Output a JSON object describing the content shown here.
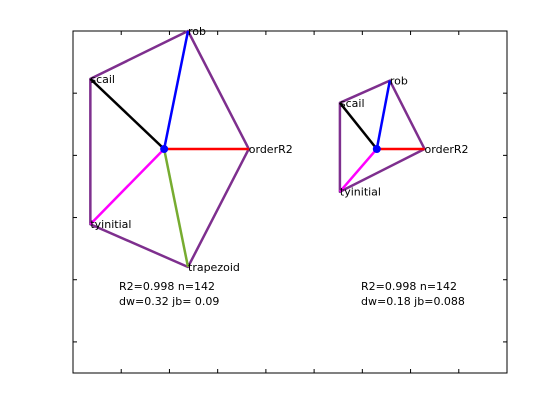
{
  "chart_data": {
    "type": "radar-diagram",
    "grid": false,
    "axes_box": true,
    "axis_ranges": {
      "x": [
        0,
        1
      ],
      "y": [
        0,
        1
      ]
    },
    "diagrams": [
      {
        "hub": {
          "x": 0.21,
          "y": 0.655,
          "color": "#0000ff"
        },
        "spokes": [
          {
            "label": "orderR2",
            "x": 0.405,
            "y": 0.655,
            "color": "#ff0000"
          },
          {
            "label": "rob",
            "x": 0.265,
            "y": 1.0,
            "color": "#0000ff"
          },
          {
            "label": "scail",
            "x": 0.04,
            "y": 0.86,
            "color": "#000000"
          },
          {
            "label": "tyinitial",
            "x": 0.04,
            "y": 0.435,
            "color": "#ff00ff"
          },
          {
            "label": "trapezoid",
            "x": 0.265,
            "y": 0.31,
            "color": "#77ac30"
          }
        ],
        "outline_color": "#7e2f8e",
        "stats": {
          "line1": "R2=0.998 n=142",
          "line2": "dw=0.32 jb= 0.09"
        }
      },
      {
        "hub": {
          "x": 0.7,
          "y": 0.655,
          "color": "#0000ff"
        },
        "spokes": [
          {
            "label": "orderR2",
            "x": 0.81,
            "y": 0.655,
            "color": "#ff0000"
          },
          {
            "label": "rob",
            "x": 0.73,
            "y": 0.855,
            "color": "#0000ff"
          },
          {
            "label": "scail",
            "x": 0.615,
            "y": 0.79,
            "color": "#000000"
          },
          {
            "label": "tyinitial",
            "x": 0.615,
            "y": 0.53,
            "color": "#ff00ff"
          }
        ],
        "outline_color": "#7e2f8e",
        "stats": {
          "line1": "R2=0.998 n=142",
          "line2": "dw=0.18 jb=0.088"
        }
      }
    ]
  }
}
